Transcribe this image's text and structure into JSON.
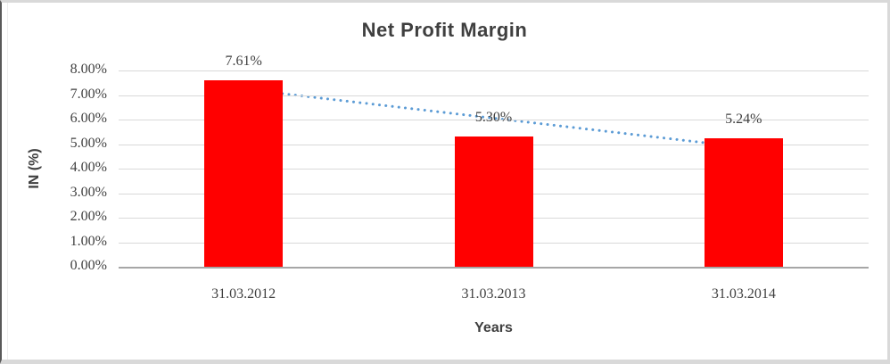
{
  "frame": {
    "background": "#ffffff",
    "border_outer_color": "#d9d9d9",
    "border_left_color": "#595959"
  },
  "chart_data": {
    "type": "bar",
    "title": "Net Profit Margin",
    "xlabel": "Years",
    "ylabel": "IN (%)",
    "categories": [
      "31.03.2012",
      "31.03.2013",
      "31.03.2014"
    ],
    "values": [
      7.61,
      5.3,
      5.24
    ],
    "data_labels": [
      "7.61%",
      "5.30%",
      "5.24%"
    ],
    "y_ticks": [
      "8.00%",
      "7.00%",
      "6.00%",
      "5.00%",
      "4.00%",
      "3.00%",
      "2.00%",
      "1.00%",
      "0.00%"
    ],
    "y_tick_values": [
      8,
      7,
      6,
      5,
      4,
      3,
      2,
      1,
      0
    ],
    "ylim": [
      0,
      8
    ],
    "grid": true,
    "legend": "none",
    "bar_color": "#FF0000",
    "gridline_color": "#D9D9D9",
    "axis_color": "#A6A6A6",
    "text_color": "#404040",
    "title_color": "#3F3F3F",
    "trendline": {
      "type": "linear",
      "style": "dotted",
      "color": "#5B9BD5",
      "start_value": 7.24,
      "end_value": 4.87
    }
  }
}
